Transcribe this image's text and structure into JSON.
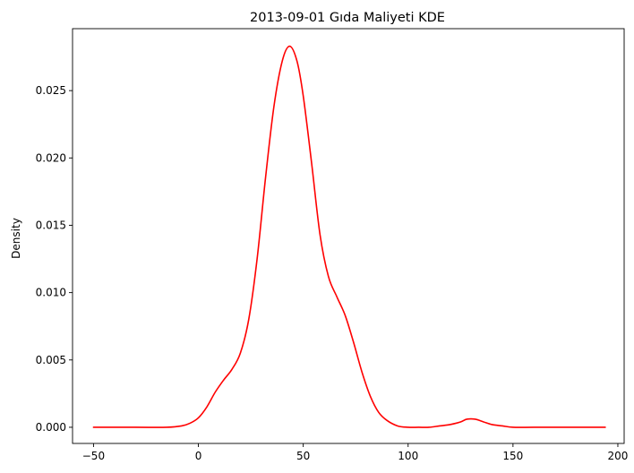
{
  "chart_data": {
    "type": "line",
    "title": "2013-09-01 Gıda Maliyeti KDE",
    "xlabel": "",
    "ylabel": "Density",
    "xlim": [
      -60,
      203
    ],
    "ylim": [
      -0.0012,
      0.0296
    ],
    "xticks": [
      -50,
      0,
      50,
      100,
      150,
      200
    ],
    "xtick_labels": [
      "−50",
      "0",
      "50",
      "100",
      "150",
      "200"
    ],
    "yticks": [
      0.0,
      0.005,
      0.01,
      0.015,
      0.02,
      0.025
    ],
    "ytick_labels": [
      "0.000",
      "0.005",
      "0.010",
      "0.015",
      "0.020",
      "0.025"
    ],
    "grid": false,
    "series": [
      {
        "color": "#ff0000",
        "x": [
          -50,
          -30,
          -15,
          -8,
          -4,
          0,
          4,
          8,
          12,
          16,
          20,
          24,
          28,
          32,
          36,
          40,
          43.5,
          47,
          50,
          54,
          58,
          62,
          66,
          70,
          74,
          78,
          82,
          86,
          90,
          95,
          100,
          105,
          110,
          115,
          120,
          125,
          128,
          132,
          136,
          140,
          145,
          150,
          160,
          175,
          194
        ],
        "y": [
          0.0,
          0.0,
          0.0,
          0.0001,
          0.0003,
          0.0007,
          0.0015,
          0.0026,
          0.0035,
          0.0043,
          0.0055,
          0.008,
          0.0125,
          0.0185,
          0.0238,
          0.0272,
          0.0283,
          0.0272,
          0.0246,
          0.0196,
          0.0143,
          0.0112,
          0.0097,
          0.0083,
          0.0063,
          0.0041,
          0.0023,
          0.0011,
          0.0005,
          0.0001,
          0.0,
          0.0,
          0.0,
          0.0001,
          0.0002,
          0.0004,
          0.0006,
          0.0006,
          0.0004,
          0.0002,
          0.0001,
          0.0,
          0.0,
          0.0,
          0.0
        ]
      }
    ]
  }
}
